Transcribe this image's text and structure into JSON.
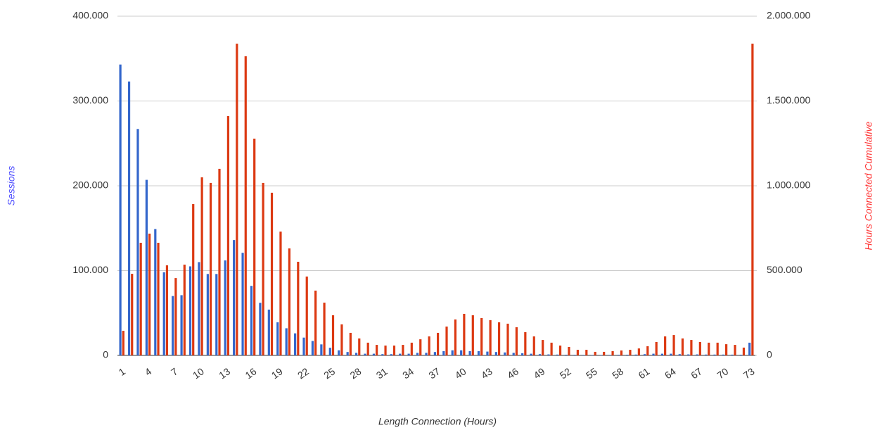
{
  "chart_data": {
    "type": "bar",
    "x_label": "Length Connection (Hours)",
    "y_label": "Sessions",
    "y2_label": "Hours Connected Cumulative",
    "categories": [
      "1",
      null,
      null,
      "4",
      null,
      null,
      "7",
      null,
      null,
      "10",
      null,
      null,
      "13",
      null,
      null,
      "16",
      null,
      null,
      "19",
      null,
      null,
      "22",
      null,
      null,
      "25",
      null,
      null,
      "28",
      null,
      null,
      "31",
      null,
      null,
      "34",
      null,
      null,
      "37",
      null,
      null,
      "40",
      null,
      null,
      "43",
      null,
      null,
      "46",
      null,
      null,
      "49",
      null,
      null,
      "52",
      null,
      null,
      "55",
      null,
      null,
      "58",
      null,
      null,
      "61",
      null,
      null,
      "64",
      null,
      null,
      "67",
      null,
      null,
      "70",
      null,
      null,
      "73"
    ],
    "series": [
      {
        "name": "Sessions",
        "color": "#3366cc",
        "axis": "y",
        "values": [
          343000,
          323000,
          267000,
          207000,
          149000,
          98000,
          70000,
          71000,
          105000,
          110000,
          96000,
          96000,
          112000,
          136000,
          121000,
          82000,
          62000,
          54000,
          39000,
          32000,
          26000,
          21000,
          17000,
          13000,
          9000,
          6000,
          4000,
          3000,
          2000,
          2000,
          1500,
          1500,
          2000,
          2000,
          3000,
          3000,
          4000,
          5000,
          6000,
          6000,
          5000,
          5000,
          4500,
          4000,
          3500,
          3000,
          2500,
          2000,
          1500,
          1200,
          1000,
          800,
          700,
          600,
          500,
          500,
          600,
          700,
          800,
          1000,
          1500,
          2000,
          2000,
          2000,
          1500,
          1200,
          1200,
          1000,
          1000,
          1000,
          900,
          800,
          15000
        ]
      },
      {
        "name": "Hours Connected Cumulative",
        "color": "#dc3912",
        "axis": "y2",
        "values": [
          145000,
          481000,
          664000,
          718000,
          664000,
          531000,
          456000,
          535000,
          892000,
          1050000,
          1017000,
          1100000,
          1411000,
          1838000,
          1764000,
          1278000,
          1017000,
          959000,
          730000,
          631000,
          552000,
          465000,
          382000,
          311000,
          237000,
          183000,
          133000,
          100000,
          75000,
          62000,
          58000,
          58000,
          62000,
          75000,
          95000,
          112000,
          133000,
          170000,
          212000,
          245000,
          237000,
          220000,
          208000,
          195000,
          187000,
          166000,
          137000,
          112000,
          91000,
          75000,
          58000,
          50000,
          33000,
          33000,
          21000,
          21000,
          25000,
          29000,
          33000,
          41000,
          54000,
          79000,
          112000,
          120000,
          100000,
          91000,
          79000,
          75000,
          75000,
          66000,
          62000,
          46000,
          1838000
        ]
      }
    ],
    "ylim": [
      0,
      400000
    ],
    "yticks": [
      0,
      {
        "value": 100000,
        "label": "100.000"
      },
      {
        "value": 200000,
        "label": "200.000"
      },
      {
        "value": 300000,
        "label": "300.000"
      },
      {
        "value": 400000,
        "label": "400.000"
      }
    ],
    "y2lim": [
      0,
      2000000
    ],
    "y2ticks": [
      0,
      {
        "value": 500000,
        "label": "500.000"
      },
      {
        "value": 1000000,
        "label": "1.000.000"
      },
      {
        "value": 1500000,
        "label": "1.500.000"
      },
      {
        "value": 2000000,
        "label": "2.000.000"
      }
    ],
    "grid": true
  }
}
